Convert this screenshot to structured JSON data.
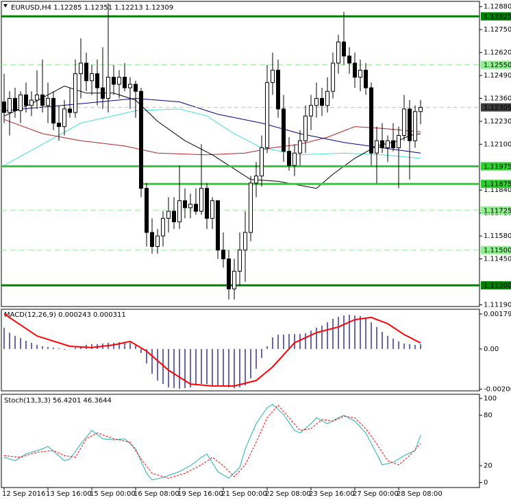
{
  "chart_data": [
    {
      "type": "candlestick",
      "title": "EURUSD,H4 1.12285 1.12351 1.12213 1.12309",
      "colors": {
        "up": "#ffffff",
        "down": "#000000",
        "wick": "#000000"
      },
      "xlim": [
        -0.5,
        86.75
      ],
      "ylim": [
        1.1118,
        1.1291
      ],
      "xticks": [
        {
          "value": 0,
          "label": "12 Sep 2016"
        },
        {
          "value": 8,
          "label": "13 Sep 16:00"
        },
        {
          "value": 16,
          "label": "15 Sep 00:00"
        },
        {
          "value": 24,
          "label": "16 Sep 08:00"
        },
        {
          "value": 32,
          "label": "19 Sep 16:00"
        },
        {
          "value": 40,
          "label": "21 Sep 00:00"
        },
        {
          "value": 48,
          "label": "22 Sep 08:00"
        },
        {
          "value": 56,
          "label": "23 Sep 16:00"
        },
        {
          "value": 64,
          "label": "27 Sep 00:00"
        },
        {
          "value": 72,
          "label": "28 Sep 08:00"
        }
      ],
      "yticks": [
        {
          "value": 1.1288,
          "label": "1.12880"
        },
        {
          "value": 1.1275,
          "label": "1.12750"
        },
        {
          "value": 1.1262,
          "label": "1.12620"
        },
        {
          "value": 1.1249,
          "label": "1.12490"
        },
        {
          "value": 1.1236,
          "label": "1.12360"
        },
        {
          "value": 1.1223,
          "label": "1.12230"
        },
        {
          "value": 1.121,
          "label": "1.12100"
        },
        {
          "value": 1.1184,
          "label": "1.11840"
        },
        {
          "value": 1.1171,
          "label": "1.11710"
        },
        {
          "value": 1.1158,
          "label": "1.11580"
        },
        {
          "value": 1.1145,
          "label": "1.11450"
        },
        {
          "value": 1.1119,
          "label": "1.11190"
        }
      ],
      "open": [
        1.1234,
        1.1228,
        1.1236,
        1.1229,
        1.1238,
        1.1232,
        1.1235,
        1.1238,
        1.1232,
        1.1236,
        1.1222,
        1.122,
        1.123,
        1.1228,
        1.125,
        1.1256,
        1.1246,
        1.125,
        1.1242,
        1.1236,
        1.1248,
        1.1244,
        1.1248,
        1.1242,
        1.1244,
        1.124,
        1.1185,
        1.116,
        1.1152,
        1.1158,
        1.1168,
        1.1172,
        1.1166,
        1.1178,
        1.1174,
        1.1176,
        1.1172,
        1.1185,
        1.1168,
        1.1178,
        1.115,
        1.1145,
        1.1128,
        1.1138,
        1.115,
        1.116,
        1.1188,
        1.1192,
        1.1208,
        1.1245,
        1.1252,
        1.123,
        1.1206,
        1.1198,
        1.1205,
        1.1212,
        1.1226,
        1.1232,
        1.1236,
        1.1232,
        1.124,
        1.1256,
        1.1268,
        1.126,
        1.1256,
        1.1248,
        1.1252,
        1.1242,
        1.1205,
        1.1212,
        1.1208,
        1.1212,
        1.1208,
        1.1215,
        1.123,
        1.1212,
        1.12285
      ],
      "high": [
        1.125,
        1.124,
        1.1242,
        1.124,
        1.1245,
        1.124,
        1.1252,
        1.1258,
        1.1245,
        1.124,
        1.1232,
        1.1235,
        1.1242,
        1.1258,
        1.127,
        1.1262,
        1.1255,
        1.1258,
        1.1265,
        1.129,
        1.1255,
        1.1252,
        1.1256,
        1.1248,
        1.1246,
        1.1242,
        1.1188,
        1.1168,
        1.1162,
        1.1172,
        1.118,
        1.118,
        1.1198,
        1.1185,
        1.1182,
        1.1185,
        1.121,
        1.1188,
        1.118,
        1.1178,
        1.116,
        1.115,
        1.1145,
        1.116,
        1.1172,
        1.1192,
        1.12,
        1.1215,
        1.1255,
        1.1262,
        1.1258,
        1.1238,
        1.1214,
        1.121,
        1.1218,
        1.1232,
        1.1238,
        1.1245,
        1.1242,
        1.1248,
        1.1262,
        1.1272,
        1.1285,
        1.1265,
        1.1262,
        1.1258,
        1.1256,
        1.1245,
        1.122,
        1.1222,
        1.1215,
        1.1222,
        1.122,
        1.1238,
        1.1235,
        1.1232,
        1.12351
      ],
      "low": [
        1.1222,
        1.1215,
        1.1225,
        1.1222,
        1.1228,
        1.1226,
        1.123,
        1.1228,
        1.1222,
        1.1218,
        1.1212,
        1.1215,
        1.1225,
        1.1225,
        1.1236,
        1.124,
        1.1238,
        1.1232,
        1.123,
        1.1228,
        1.1238,
        1.1236,
        1.124,
        1.123,
        1.1225,
        1.118,
        1.1152,
        1.1148,
        1.1148,
        1.1152,
        1.116,
        1.1162,
        1.1162,
        1.1168,
        1.1168,
        1.117,
        1.117,
        1.1162,
        1.1162,
        1.1145,
        1.114,
        1.1122,
        1.1122,
        1.113,
        1.1132,
        1.1155,
        1.118,
        1.1186,
        1.1205,
        1.1238,
        1.1225,
        1.12,
        1.1195,
        1.1192,
        1.1198,
        1.1205,
        1.1218,
        1.1225,
        1.1226,
        1.1228,
        1.1236,
        1.125,
        1.1255,
        1.125,
        1.1242,
        1.124,
        1.1238,
        1.1198,
        1.1188,
        1.1205,
        1.12,
        1.1206,
        1.1185,
        1.1212,
        1.119,
        1.1208,
        1.12213
      ],
      "close": [
        1.1228,
        1.1236,
        1.1229,
        1.1238,
        1.1232,
        1.1235,
        1.1238,
        1.1232,
        1.1236,
        1.1222,
        1.122,
        1.123,
        1.1228,
        1.125,
        1.1256,
        1.1246,
        1.125,
        1.1242,
        1.1236,
        1.1248,
        1.1244,
        1.1248,
        1.1242,
        1.1244,
        1.124,
        1.1185,
        1.116,
        1.1152,
        1.1158,
        1.1168,
        1.1172,
        1.1166,
        1.1178,
        1.1174,
        1.1176,
        1.1172,
        1.1185,
        1.1168,
        1.1178,
        1.115,
        1.1145,
        1.1128,
        1.1138,
        1.115,
        1.116,
        1.1188,
        1.1192,
        1.1208,
        1.1245,
        1.1252,
        1.123,
        1.1206,
        1.1198,
        1.1205,
        1.1212,
        1.1226,
        1.1232,
        1.1236,
        1.1232,
        1.124,
        1.1256,
        1.1268,
        1.126,
        1.1256,
        1.1248,
        1.1252,
        1.1242,
        1.1205,
        1.1212,
        1.1208,
        1.1212,
        1.1208,
        1.1215,
        1.123,
        1.1212,
        1.12285,
        1.12309
      ],
      "lines": [
        {
          "color": "#40e0d0",
          "x": [
            0,
            7,
            14,
            24,
            32,
            37,
            42,
            47,
            54,
            62,
            69,
            76
          ],
          "values": [
            1.1198,
            1.121,
            1.1222,
            1.1229,
            1.123,
            1.1226,
            1.1216,
            1.1208,
            1.1204,
            1.1205,
            1.1204,
            1.1202
          ]
        },
        {
          "color": "#b22222",
          "x": [
            0,
            7,
            14,
            22,
            28,
            37,
            44,
            49,
            54,
            59,
            64,
            69,
            76
          ],
          "values": [
            1.1224,
            1.1216,
            1.1212,
            1.1209,
            1.1205,
            1.1204,
            1.1205,
            1.1208,
            1.121,
            1.1214,
            1.122,
            1.1219,
            1.1217
          ]
        },
        {
          "color": "#00008b",
          "x": [
            0,
            7,
            14,
            24,
            32,
            39,
            47,
            54,
            62,
            69,
            76
          ],
          "values": [
            1.1229,
            1.1231,
            1.1233,
            1.1236,
            1.1234,
            1.1227,
            1.1222,
            1.1216,
            1.1211,
            1.1208,
            1.1205
          ]
        },
        {
          "color": "#000000",
          "x": [
            0,
            5,
            11,
            15,
            20,
            24,
            28,
            33,
            38,
            42,
            45,
            50,
            57,
            60,
            64,
            68,
            72,
            74,
            76
          ],
          "values": [
            1.1226,
            1.1233,
            1.1243,
            1.1239,
            1.1239,
            1.1235,
            1.1223,
            1.1212,
            1.1204,
            1.1196,
            1.119,
            1.1189,
            1.1185,
            1.1193,
            1.1202,
            1.1209,
            1.1212,
            1.1215,
            1.1216
          ]
        }
      ],
      "levels": [
        {
          "value": 1.12825,
          "label": "1.12825",
          "color": "#008000",
          "style": "solid"
        },
        {
          "value": 1.1255,
          "label": "1.12550",
          "color": "#90ee90",
          "style": "dashed"
        },
        {
          "value": 1.11975,
          "label": "1.11975",
          "color": "#32cd32",
          "style": "solid"
        },
        {
          "value": 1.11875,
          "label": "1.11875",
          "color": "#32cd32",
          "style": "solid",
          "start": 25
        },
        {
          "value": 1.11725,
          "label": "1.11725",
          "color": "#90ee90",
          "style": "dashed"
        },
        {
          "value": 1.115,
          "label": "1.11500",
          "color": "#90ee90",
          "style": "dashed"
        },
        {
          "value": 1.113,
          "label": "1.11300",
          "color": "#008000",
          "style": "solid"
        }
      ],
      "bid": {
        "value": 1.12309,
        "label": "1.12309",
        "color": "#c0c0c0"
      }
    },
    {
      "type": "macd",
      "title": "MACD(12,26,9) 0.000243 0.000311",
      "ylim": [
        -0.00215,
        0.00204
      ],
      "yticks": [
        0.001797,
        {
          "value": 0,
          "label": "0.00"
        },
        -0.002062
      ],
      "series": [
        {
          "kind": "histogram",
          "color": "#000080",
          "values": [
            0.00109,
            0.00084,
            0.00067,
            0.00056,
            0.00042,
            0.00032,
            0.00021,
            0.00014,
            0.00011,
            7e-05,
            4e-05,
            -4e-05,
            1e-05,
            7e-05,
            0.00014,
            0.00021,
            0.00025,
            0.00025,
            0.00028,
            0.00032,
            0.00032,
            0.00035,
            0.00035,
            0.00032,
            0.00018,
            -0.00021,
            -0.00074,
            -0.00127,
            -0.00162,
            -0.0018,
            -0.00197,
            -0.00201,
            -0.00204,
            -0.00201,
            -0.00197,
            -0.00187,
            -0.0018,
            -0.0018,
            -0.00187,
            -0.0019,
            -0.00194,
            -0.00197,
            -0.00201,
            -0.00197,
            -0.00187,
            -0.00151,
            -0.00102,
            -0.00046,
            0.00014,
            0.0006,
            0.00074,
            0.00074,
            0.00077,
            0.00077,
            0.00077,
            0.00081,
            0.00095,
            0.00109,
            0.0012,
            0.00137,
            0.00155,
            0.00165,
            0.00172,
            0.00176,
            0.00172,
            0.00169,
            0.00158,
            0.00137,
            0.00113,
            0.00088,
            0.00067,
            0.00053,
            0.00039,
            0.00028,
            0.00025,
            0.00021,
            0.000243
          ]
        },
        {
          "kind": "line",
          "color": "#ff0000",
          "x": [
            0,
            6,
            12,
            16,
            20,
            23,
            26,
            30,
            34,
            38,
            42,
            46,
            49,
            53,
            57,
            61,
            64,
            67,
            70,
            73,
            76
          ],
          "values": [
            0.0018,
            0.00067,
            0.00014,
            7e-05,
            0.00021,
            0.00039,
            -0.00011,
            -0.00109,
            -0.0018,
            -0.0019,
            -0.0019,
            -0.00162,
            -0.00092,
            0.00032,
            0.00084,
            0.00113,
            0.00151,
            0.00162,
            0.0013,
            0.00074,
            0.000311
          ]
        }
      ]
    },
    {
      "type": "stochastic",
      "title": "Stoch(13,3,3) 56.4201 46.3644",
      "ylim": [
        -6,
        105
      ],
      "yticks": [
        100,
        80,
        20,
        0
      ],
      "series": [
        {
          "color": "#20b2aa",
          "x": [
            0,
            2,
            4,
            7,
            8,
            11,
            12,
            14,
            16,
            18,
            20,
            22,
            24,
            26,
            27,
            29,
            32,
            34,
            36,
            37,
            39,
            41,
            43,
            44,
            46,
            48,
            49,
            51,
            53,
            54,
            56,
            57,
            59,
            61,
            62,
            64,
            66,
            68,
            69,
            71,
            73,
            75,
            76
          ],
          "values": [
            30,
            26,
            34,
            40,
            43,
            26,
            28,
            46,
            62,
            52,
            51,
            52,
            40,
            11,
            3,
            6,
            13,
            20,
            30,
            34,
            13,
            5,
            18,
            40,
            70,
            89,
            93,
            81,
            62,
            59,
            70,
            77,
            70,
            77,
            80,
            73,
            59,
            34,
            21,
            24,
            32,
            38,
            56.4201
          ]
        },
        {
          "color": "#ff0000",
          "dash": true,
          "x": [
            0,
            3,
            6,
            9,
            11,
            13,
            15,
            17,
            20,
            23,
            25,
            27,
            30,
            33,
            36,
            38,
            40,
            42,
            44,
            46,
            48,
            50,
            52,
            54,
            56,
            58,
            60,
            62,
            64,
            66,
            68,
            70,
            72,
            74,
            76
          ],
          "values": [
            32,
            30,
            36,
            38,
            32,
            30,
            52,
            59,
            52,
            48,
            28,
            11,
            5,
            11,
            21,
            30,
            20,
            7,
            21,
            48,
            77,
            92,
            77,
            62,
            64,
            75,
            73,
            79,
            77,
            64,
            46,
            26,
            21,
            32,
            46.3644
          ]
        }
      ]
    }
  ]
}
